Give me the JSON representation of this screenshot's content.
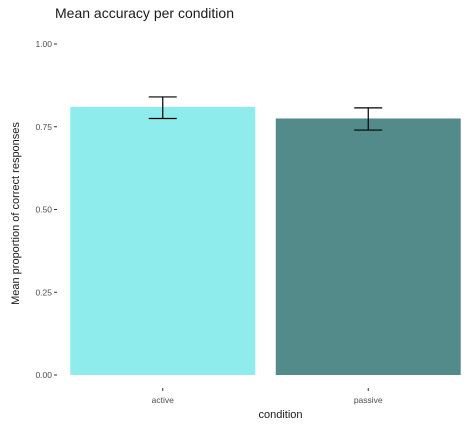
{
  "chart_data": {
    "type": "bar",
    "title": "Mean accuracy per condition",
    "xlabel": "condition",
    "ylabel": "Mean proportion of correct responses",
    "categories": [
      "active",
      "passive"
    ],
    "values": [
      0.81,
      0.775
    ],
    "error_low": [
      0.775,
      0.74
    ],
    "error_high": [
      0.84,
      0.807
    ],
    "colors": [
      "#8EEDEC",
      "#538B8A"
    ],
    "ylim": [
      0,
      1
    ],
    "yticks": [
      0,
      0.25,
      0.5,
      0.75,
      1
    ],
    "ytick_labels": [
      "0.00",
      "0.25",
      "0.50",
      "0.75",
      "1.00"
    ],
    "grid": false,
    "legend": "none"
  }
}
